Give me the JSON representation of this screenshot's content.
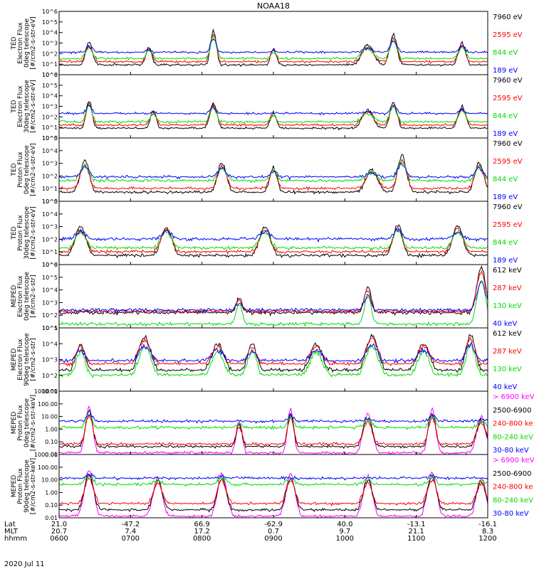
{
  "chart_data": {
    "type": "line",
    "title": "NOAA18",
    "date": "2020 Jul 11",
    "time_range_hhmm": [
      "0600",
      "1200"
    ],
    "x_rows": {
      "labels": [
        "Lat",
        "MLT",
        "hhmm"
      ],
      "ticks": [
        [
          "21.0",
          "-47.2",
          "66.9",
          "-62.9",
          "40.0",
          "-13.1",
          "-16.1"
        ],
        [
          "20.7",
          "7.4",
          "17.2",
          "0.7",
          "9.7",
          "21.1",
          "8.3"
        ],
        [
          "0600",
          "0700",
          "0800",
          "0900",
          "1000",
          "1100",
          "1200"
        ]
      ]
    },
    "panels": [
      {
        "ylabel": [
          "TED",
          "Electron Flux",
          "0deg telescope",
          "[#/cm2-s-str-eV]"
        ],
        "scale": "log",
        "ylim": [
          1,
          1000000
        ],
        "ytick_labels": [
          "10^0",
          "10^1",
          "10^2",
          "10^3",
          "10^4",
          "10^5",
          "10^6"
        ],
        "series": [
          {
            "name": "7960 eV",
            "color": "#000000",
            "baseline": 0.8
          },
          {
            "name": "2595 eV",
            "color": "#ff0000",
            "baseline": 1.1
          },
          {
            "name": "844 eV",
            "color": "#00dd00",
            "baseline": 1.4
          },
          {
            "name": "189 eV",
            "color": "#0000ff",
            "baseline": 2.0
          }
        ],
        "events": [
          {
            "t": 0.07,
            "peak": 3.0,
            "width": 0.012
          },
          {
            "t": 0.21,
            "peak": 2.6,
            "width": 0.01
          },
          {
            "t": 0.36,
            "peak": 4.2,
            "width": 0.01
          },
          {
            "t": 0.5,
            "peak": 2.4,
            "width": 0.01
          },
          {
            "t": 0.72,
            "peak": 2.8,
            "width": 0.02
          },
          {
            "t": 0.78,
            "peak": 3.8,
            "width": 0.012
          },
          {
            "t": 0.94,
            "peak": 3.0,
            "width": 0.012
          }
        ]
      },
      {
        "ylabel": [
          "TED",
          "Electron Flux",
          "30deg telescope",
          "[#/cm2-s-str-eV]"
        ],
        "scale": "log",
        "ylim": [
          1,
          1000000
        ],
        "ytick_labels": [
          "10^0",
          "10^1",
          "10^2",
          "10^3",
          "10^4",
          "10^5",
          "10^6"
        ],
        "series": [
          {
            "name": "7960 eV",
            "color": "#000000",
            "baseline": 0.8
          },
          {
            "name": "2595 eV",
            "color": "#ff0000",
            "baseline": 1.1
          },
          {
            "name": "844 eV",
            "color": "#00dd00",
            "baseline": 1.4
          },
          {
            "name": "189 eV",
            "color": "#0000ff",
            "baseline": 2.2
          }
        ],
        "events": [
          {
            "t": 0.07,
            "peak": 3.6,
            "width": 0.01
          },
          {
            "t": 0.22,
            "peak": 2.6,
            "width": 0.01
          },
          {
            "t": 0.36,
            "peak": 3.3,
            "width": 0.012
          },
          {
            "t": 0.5,
            "peak": 2.4,
            "width": 0.01
          },
          {
            "t": 0.72,
            "peak": 2.6,
            "width": 0.02
          },
          {
            "t": 0.78,
            "peak": 3.4,
            "width": 0.012
          },
          {
            "t": 0.94,
            "peak": 3.0,
            "width": 0.012
          }
        ]
      },
      {
        "ylabel": [
          "TED",
          "Proton Flux",
          "0deg telescope",
          "[#/cm2-s-str-eV]"
        ],
        "scale": "log",
        "ylim": [
          1,
          100000
        ],
        "ytick_labels": [
          "10^0",
          "10^1",
          "10^2",
          "10^3",
          "10^4",
          "10^5"
        ],
        "series": [
          {
            "name": "7960 eV",
            "color": "#000000",
            "baseline": 0.6
          },
          {
            "name": "2595 eV",
            "color": "#ff0000",
            "baseline": 0.9
          },
          {
            "name": "844 eV",
            "color": "#00dd00",
            "baseline": 1.5
          },
          {
            "name": "189 eV",
            "color": "#0000ff",
            "baseline": 1.8
          }
        ],
        "events": [
          {
            "t": 0.06,
            "peak": 3.2,
            "width": 0.015
          },
          {
            "t": 0.38,
            "peak": 3.0,
            "width": 0.015
          },
          {
            "t": 0.5,
            "peak": 2.7,
            "width": 0.012
          },
          {
            "t": 0.73,
            "peak": 2.5,
            "width": 0.02
          },
          {
            "t": 0.8,
            "peak": 3.6,
            "width": 0.015
          },
          {
            "t": 0.98,
            "peak": 3.0,
            "width": 0.015
          }
        ]
      },
      {
        "ylabel": [
          "TED",
          "Proton Flux",
          "30deg telescope",
          "[#/cm2-s-str-eV]"
        ],
        "scale": "log",
        "ylim": [
          1,
          100000
        ],
        "ytick_labels": [
          "10^0",
          "10^1",
          "10^2",
          "10^3",
          "10^4",
          "10^5"
        ],
        "series": [
          {
            "name": "7960 eV",
            "color": "#000000",
            "baseline": 0.6
          },
          {
            "name": "2595 eV",
            "color": "#ff0000",
            "baseline": 0.9
          },
          {
            "name": "844 eV",
            "color": "#00dd00",
            "baseline": 1.2
          },
          {
            "name": "189 eV",
            "color": "#0000ff",
            "baseline": 1.9
          }
        ],
        "events": [
          {
            "t": 0.05,
            "peak": 3.0,
            "width": 0.018
          },
          {
            "t": 0.25,
            "peak": 3.0,
            "width": 0.018
          },
          {
            "t": 0.48,
            "peak": 3.0,
            "width": 0.018
          },
          {
            "t": 0.79,
            "peak": 3.2,
            "width": 0.015
          },
          {
            "t": 0.93,
            "peak": 3.0,
            "width": 0.018
          }
        ]
      },
      {
        "ylabel": [
          "MEPED",
          "Electron Flux",
          "0deg telescope",
          "[#/cm2-s-str]"
        ],
        "scale": "log",
        "ylim": [
          10,
          1000000
        ],
        "ytick_labels": [
          "10^1",
          "10^2",
          "10^3",
          "10^4",
          "10^5",
          "10^6"
        ],
        "series": [
          {
            "name": "612 keV",
            "color": "#000000",
            "baseline": 2.1
          },
          {
            "name": "287 keV",
            "color": "#ff0000",
            "baseline": 2.2
          },
          {
            "name": "130 keV",
            "color": "#00dd00",
            "baseline": 1.2
          },
          {
            "name": "40 keV",
            "color": "#0000ff",
            "baseline": 2.3
          }
        ],
        "events": [
          {
            "t": 0.42,
            "peak": 3.4,
            "width": 0.01
          },
          {
            "t": 0.72,
            "peak": 4.2,
            "width": 0.012
          },
          {
            "t": 0.985,
            "peak": 5.8,
            "width": 0.015
          }
        ]
      },
      {
        "ylabel": [
          "MEPED",
          "Electron Flux",
          "90deg telescope",
          "[#/cm2-s-str]"
        ],
        "scale": "log",
        "ylim": [
          10,
          100000
        ],
        "ytick_labels": [
          "10^1",
          "10^2",
          "10^3",
          "10^4",
          "10^5"
        ],
        "series": [
          {
            "name": "612 keV",
            "color": "#000000",
            "baseline": 2.2
          },
          {
            "name": "287 keV",
            "color": "#ff0000",
            "baseline": 2.6
          },
          {
            "name": "130 keV",
            "color": "#00dd00",
            "baseline": 1.9
          },
          {
            "name": "40 keV",
            "color": "#0000ff",
            "baseline": 2.8
          }
        ],
        "events": [
          {
            "t": 0.05,
            "peak": 4.0,
            "width": 0.015
          },
          {
            "t": 0.2,
            "peak": 4.4,
            "width": 0.02
          },
          {
            "t": 0.37,
            "peak": 4.0,
            "width": 0.02
          },
          {
            "t": 0.45,
            "peak": 4.0,
            "width": 0.015
          },
          {
            "t": 0.6,
            "peak": 4.0,
            "width": 0.02
          },
          {
            "t": 0.73,
            "peak": 4.5,
            "width": 0.02
          },
          {
            "t": 0.85,
            "peak": 4.0,
            "width": 0.02
          },
          {
            "t": 0.96,
            "peak": 4.6,
            "width": 0.015
          }
        ]
      },
      {
        "ylabel": [
          "MEPED",
          "Proton Flux",
          "0deg telescope",
          "[#/cm2-s-str-keV]"
        ],
        "scale": "log",
        "ylim": [
          0.01,
          1000
        ],
        "ytick_labels": [
          "0.01",
          "0.10",
          "1.00",
          "10.00",
          "100.00",
          "1000.00"
        ],
        "series": [
          {
            "name": "> 6900 keV",
            "color": "#ff00ff",
            "baseline": -2.0
          },
          {
            "name": "2500-6900",
            "color": "#000000",
            "baseline": -1.5
          },
          {
            "name": "240-800 ke",
            "color": "#ff0000",
            "baseline": -1.3
          },
          {
            "name": "80-240 keV",
            "color": "#00dd00",
            "baseline": 0.0
          },
          {
            "name": "30-80 keV",
            "color": "#0000ff",
            "baseline": 0.5
          }
        ],
        "events": [
          {
            "t": 0.07,
            "peak": 1.8,
            "width": 0.012
          },
          {
            "t": 0.42,
            "peak": 0.6,
            "width": 0.01
          },
          {
            "t": 0.54,
            "peak": 1.6,
            "width": 0.01
          },
          {
            "t": 0.72,
            "peak": 1.2,
            "width": 0.015
          },
          {
            "t": 0.87,
            "peak": 1.6,
            "width": 0.012
          },
          {
            "t": 0.985,
            "peak": 1.0,
            "width": 0.015
          }
        ]
      },
      {
        "ylabel": [
          "MEPED",
          "Proton Flux",
          "90deg telescope",
          "[#/cm2-s-str-keV]"
        ],
        "scale": "log",
        "ylim": [
          0.01,
          1000
        ],
        "ytick_labels": [
          "0.01",
          "0.10",
          "1.00",
          "10.00",
          "100.00",
          "1000.00"
        ],
        "series": [
          {
            "name": "> 6900 keV",
            "color": "#ff00ff",
            "baseline": -2.0
          },
          {
            "name": "2500-6900",
            "color": "#000000",
            "baseline": -1.5
          },
          {
            "name": "240-800 ke",
            "color": "#ff0000",
            "baseline": -1.0
          },
          {
            "name": "80-240 keV",
            "color": "#00dd00",
            "baseline": 0.5
          },
          {
            "name": "30-80 keV",
            "color": "#0000ff",
            "baseline": 1.0
          }
        ],
        "events": [
          {
            "t": 0.07,
            "peak": 1.8,
            "width": 0.015
          },
          {
            "t": 0.23,
            "peak": 1.2,
            "width": 0.015
          },
          {
            "t": 0.38,
            "peak": 1.5,
            "width": 0.015
          },
          {
            "t": 0.54,
            "peak": 1.4,
            "width": 0.015
          },
          {
            "t": 0.72,
            "peak": 1.3,
            "width": 0.015
          },
          {
            "t": 0.87,
            "peak": 1.6,
            "width": 0.015
          },
          {
            "t": 0.985,
            "peak": 1.2,
            "width": 0.015
          }
        ]
      }
    ]
  }
}
